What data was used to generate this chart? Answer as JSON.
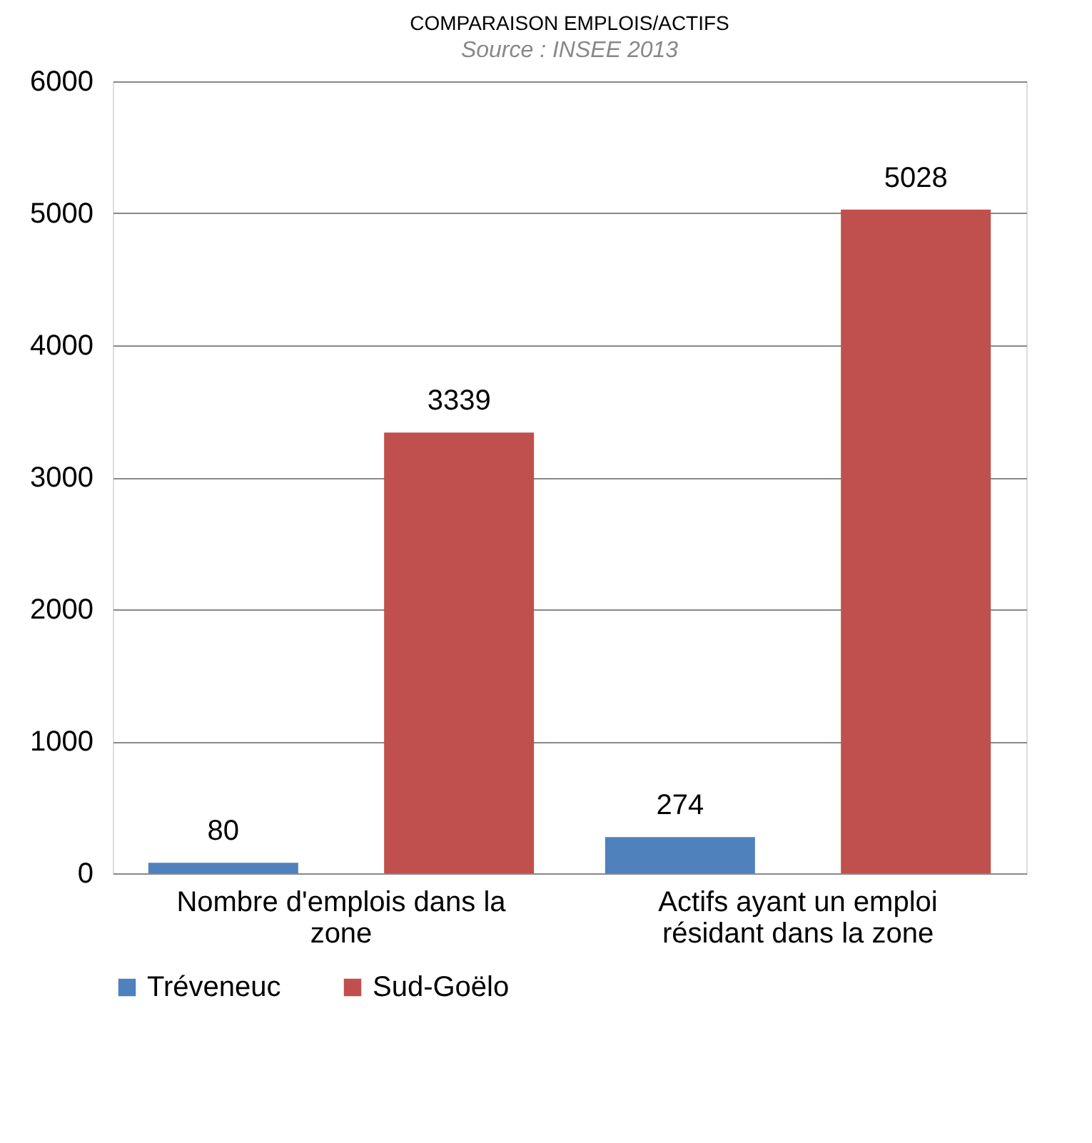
{
  "chart_data": {
    "type": "bar",
    "title": "COMPARAISON EMPLOIS/ACTIFS",
    "annotations": [
      "Source : INSEE 2013"
    ],
    "categories": [
      "Nombre d'emplois dans la zone",
      "Actifs ayant un emploi résidant dans la zone"
    ],
    "series": [
      {
        "name": "Tréveneuc",
        "color": "#4f81bd",
        "values": [
          80,
          274
        ]
      },
      {
        "name": "Sud-Goëlo",
        "color": "#c0504d",
        "values": [
          3339,
          5028
        ]
      }
    ],
    "ylim": [
      0,
      6000
    ],
    "yticks": [
      0,
      1000,
      2000,
      3000,
      4000,
      5000,
      6000
    ],
    "grid": "y",
    "legend": "bottom",
    "data_labels": true
  }
}
